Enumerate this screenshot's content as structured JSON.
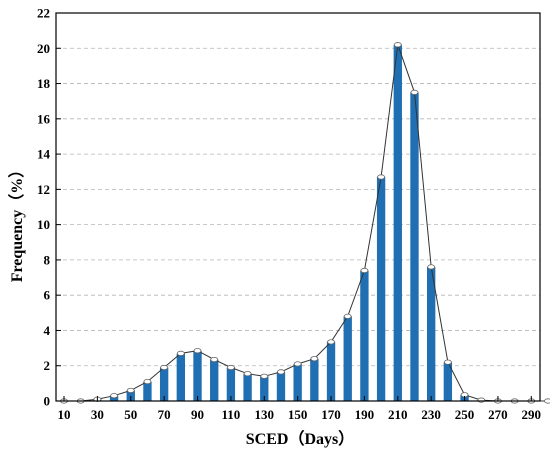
{
  "chart_data": {
    "type": "bar",
    "xlabel": "SCED（Days）",
    "ylabel": "Frequency（%）",
    "xlim": [
      10,
      300
    ],
    "ylim": [
      0,
      22
    ],
    "x_ticks": [
      "10",
      "30",
      "50",
      "70",
      "90",
      "110",
      "130",
      "150",
      "170",
      "190",
      "210",
      "230",
      "250",
      "270",
      "290"
    ],
    "y_ticks": [
      "0",
      "2",
      "4",
      "6",
      "8",
      "10",
      "12",
      "14",
      "16",
      "18",
      "20",
      "22"
    ],
    "grid": true,
    "bar_color": "#1f6fb2",
    "line_color": "#333333",
    "x": [
      10,
      20,
      30,
      40,
      50,
      60,
      70,
      80,
      90,
      100,
      110,
      120,
      130,
      140,
      150,
      160,
      170,
      180,
      190,
      200,
      210,
      220,
      230,
      240,
      250,
      260,
      270,
      280,
      290,
      300
    ],
    "values": [
      0.0,
      0.0,
      0.1,
      0.3,
      0.6,
      1.1,
      1.9,
      2.7,
      2.85,
      2.35,
      1.9,
      1.55,
      1.4,
      1.65,
      2.1,
      2.4,
      3.35,
      4.8,
      7.4,
      12.7,
      20.2,
      17.5,
      7.6,
      2.2,
      0.35,
      0.05,
      0.0,
      0.0,
      0.0,
      0.0
    ]
  }
}
